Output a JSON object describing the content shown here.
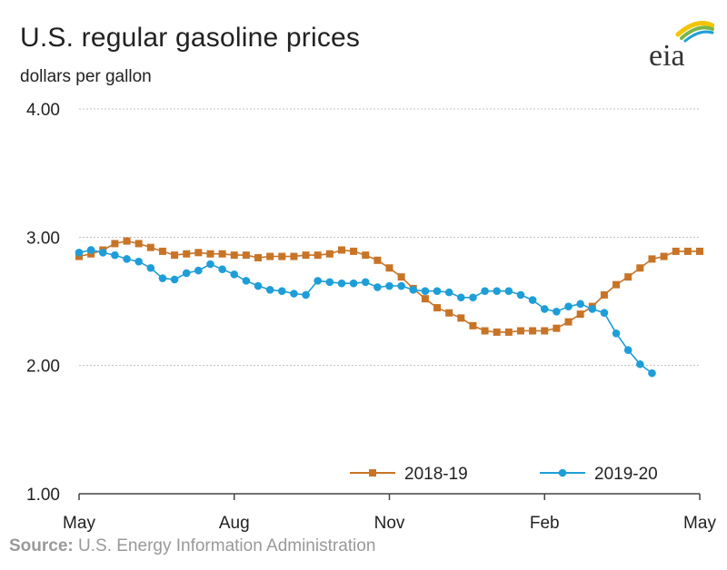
{
  "chart_data": {
    "type": "line",
    "title": "U.S. regular gasoline prices",
    "ylabel": "dollars per gallon",
    "xlabel": "",
    "ylim": [
      1.0,
      4.0
    ],
    "yticks": [
      "1.00",
      "2.00",
      "3.00",
      "4.00"
    ],
    "xticks": [
      "May",
      "Aug",
      "Nov",
      "Feb",
      "May"
    ],
    "x_unit": "weeks since start of May",
    "x_range": [
      0,
      52
    ],
    "legend_position": "bottom-right",
    "series": [
      {
        "name": "2018-19",
        "color": "#c87427",
        "marker": "square",
        "x": [
          0,
          1,
          2,
          3,
          4,
          5,
          6,
          7,
          8,
          9,
          10,
          11,
          12,
          13,
          14,
          15,
          16,
          17,
          18,
          19,
          20,
          21,
          22,
          23,
          24,
          25,
          26,
          27,
          28,
          29,
          30,
          31,
          32,
          33,
          34,
          35,
          36,
          37,
          38,
          39,
          40,
          41,
          42,
          43,
          44,
          45,
          46,
          47,
          48,
          49,
          50,
          51,
          52
        ],
        "values": [
          2.85,
          2.87,
          2.9,
          2.95,
          2.97,
          2.95,
          2.92,
          2.89,
          2.86,
          2.87,
          2.88,
          2.87,
          2.87,
          2.86,
          2.86,
          2.84,
          2.85,
          2.85,
          2.85,
          2.86,
          2.86,
          2.87,
          2.9,
          2.89,
          2.86,
          2.82,
          2.76,
          2.69,
          2.6,
          2.52,
          2.45,
          2.41,
          2.37,
          2.31,
          2.27,
          2.26,
          2.26,
          2.27,
          2.27,
          2.27,
          2.29,
          2.34,
          2.4,
          2.46,
          2.55,
          2.63,
          2.69,
          2.76,
          2.83,
          2.85,
          2.89,
          2.89,
          2.89
        ]
      },
      {
        "name": "2019-20",
        "color": "#1e9ed8",
        "marker": "circle",
        "x": [
          0,
          1,
          2,
          3,
          4,
          5,
          6,
          7,
          8,
          9,
          10,
          11,
          12,
          13,
          14,
          15,
          16,
          17,
          18,
          19,
          20,
          21,
          22,
          23,
          24,
          25,
          26,
          27,
          28,
          29,
          30,
          31,
          32,
          33,
          34,
          35,
          36,
          37,
          38,
          39,
          40,
          41,
          42,
          43,
          44,
          45,
          46,
          47,
          48
        ],
        "values": [
          2.88,
          2.9,
          2.88,
          2.86,
          2.83,
          2.81,
          2.76,
          2.68,
          2.67,
          2.72,
          2.74,
          2.79,
          2.75,
          2.71,
          2.66,
          2.62,
          2.59,
          2.58,
          2.56,
          2.55,
          2.66,
          2.65,
          2.64,
          2.64,
          2.65,
          2.61,
          2.62,
          2.62,
          2.59,
          2.58,
          2.58,
          2.57,
          2.53,
          2.53,
          2.58,
          2.58,
          2.58,
          2.55,
          2.51,
          2.44,
          2.42,
          2.46,
          2.48,
          2.44,
          2.41,
          2.25,
          2.12,
          2.01,
          1.94
        ]
      }
    ]
  },
  "source": {
    "label": "Source:",
    "text": "U.S. Energy Information Administration"
  },
  "logo": {
    "text": "eia",
    "colors": {
      "text": "#333333",
      "arc_yellow": "#f2c500",
      "arc_green": "#7ab648",
      "arc_blue": "#1e9ed8"
    }
  },
  "colors": {
    "grid": "#bfbfbf",
    "axis": "#444444"
  }
}
